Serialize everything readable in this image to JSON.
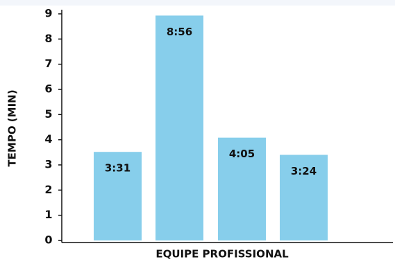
{
  "chart_data": {
    "type": "bar",
    "title": "",
    "xlabel": "EQUIPE PROFISSIONAL",
    "ylabel": "TEMPO (MIN)",
    "categories": [
      "",
      "",
      "",
      ""
    ],
    "values": [
      3.517,
      8.933,
      4.083,
      3.4
    ],
    "data_labels": [
      "3:31",
      "8:56",
      "4:05",
      "3:24"
    ],
    "yticks": [
      0,
      1,
      2,
      3,
      4,
      5,
      6,
      7,
      8,
      9
    ],
    "ytick_labels": [
      "0",
      "1",
      "2",
      "3",
      "4",
      "5",
      "6",
      "7",
      "8",
      "9"
    ],
    "ylim": [
      0,
      9.5
    ],
    "grid": false,
    "legend": "none",
    "colors": {
      "bar": "#87ceeb",
      "axis": "#111111",
      "text": "#111111",
      "top_band": "#f3f6fb"
    }
  }
}
